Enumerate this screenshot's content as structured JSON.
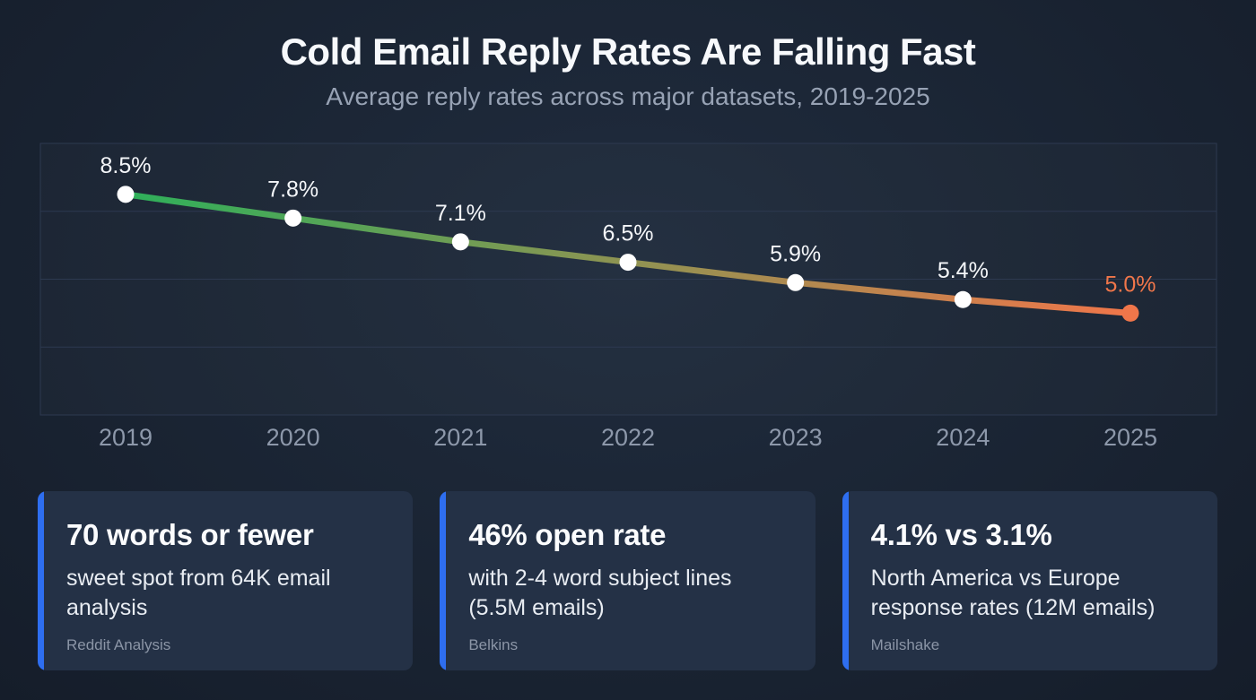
{
  "header": {
    "title": "Cold Email Reply Rates Are Falling Fast",
    "subtitle": "Average reply rates across major datasets, 2019-2025"
  },
  "chart_data": {
    "type": "line",
    "x": [
      "2019",
      "2020",
      "2021",
      "2022",
      "2023",
      "2024",
      "2025"
    ],
    "values": [
      8.5,
      7.8,
      7.1,
      6.5,
      5.9,
      5.4,
      5.0
    ],
    "point_labels": [
      "8.5%",
      "7.8%",
      "7.1%",
      "6.5%",
      "5.9%",
      "5.4%",
      "5.0%"
    ],
    "title": "Cold Email Reply Rates Are Falling Fast",
    "xlabel": "",
    "ylabel": "",
    "ylim": [
      2,
      10
    ],
    "gridlines": [
      4,
      6,
      8
    ],
    "grid": true,
    "legend": false,
    "line_gradient_start": "#2eb05a",
    "line_gradient_end": "#f0764a",
    "point_color": "#ffffff",
    "last_point_color": "#f0764a",
    "axis_label_color": "#8d98aa",
    "point_label_color": "#f4f6f9",
    "grid_color": "#2d3950"
  },
  "cards": [
    {
      "title": "70 words or fewer",
      "body": "sweet spot from 64K email analysis",
      "source": "Reddit Analysis"
    },
    {
      "title": "46% open rate",
      "body": "with 2-4 word subject lines (5.5M emails)",
      "source": "Belkins"
    },
    {
      "title": "4.1% vs 3.1%",
      "body": "North America vs Europe response rates (12M emails)",
      "source": "Mailshake"
    }
  ],
  "colors": {
    "accent_blue": "#2e6ef0",
    "background": "#1a2433",
    "card_background": "#243146"
  }
}
